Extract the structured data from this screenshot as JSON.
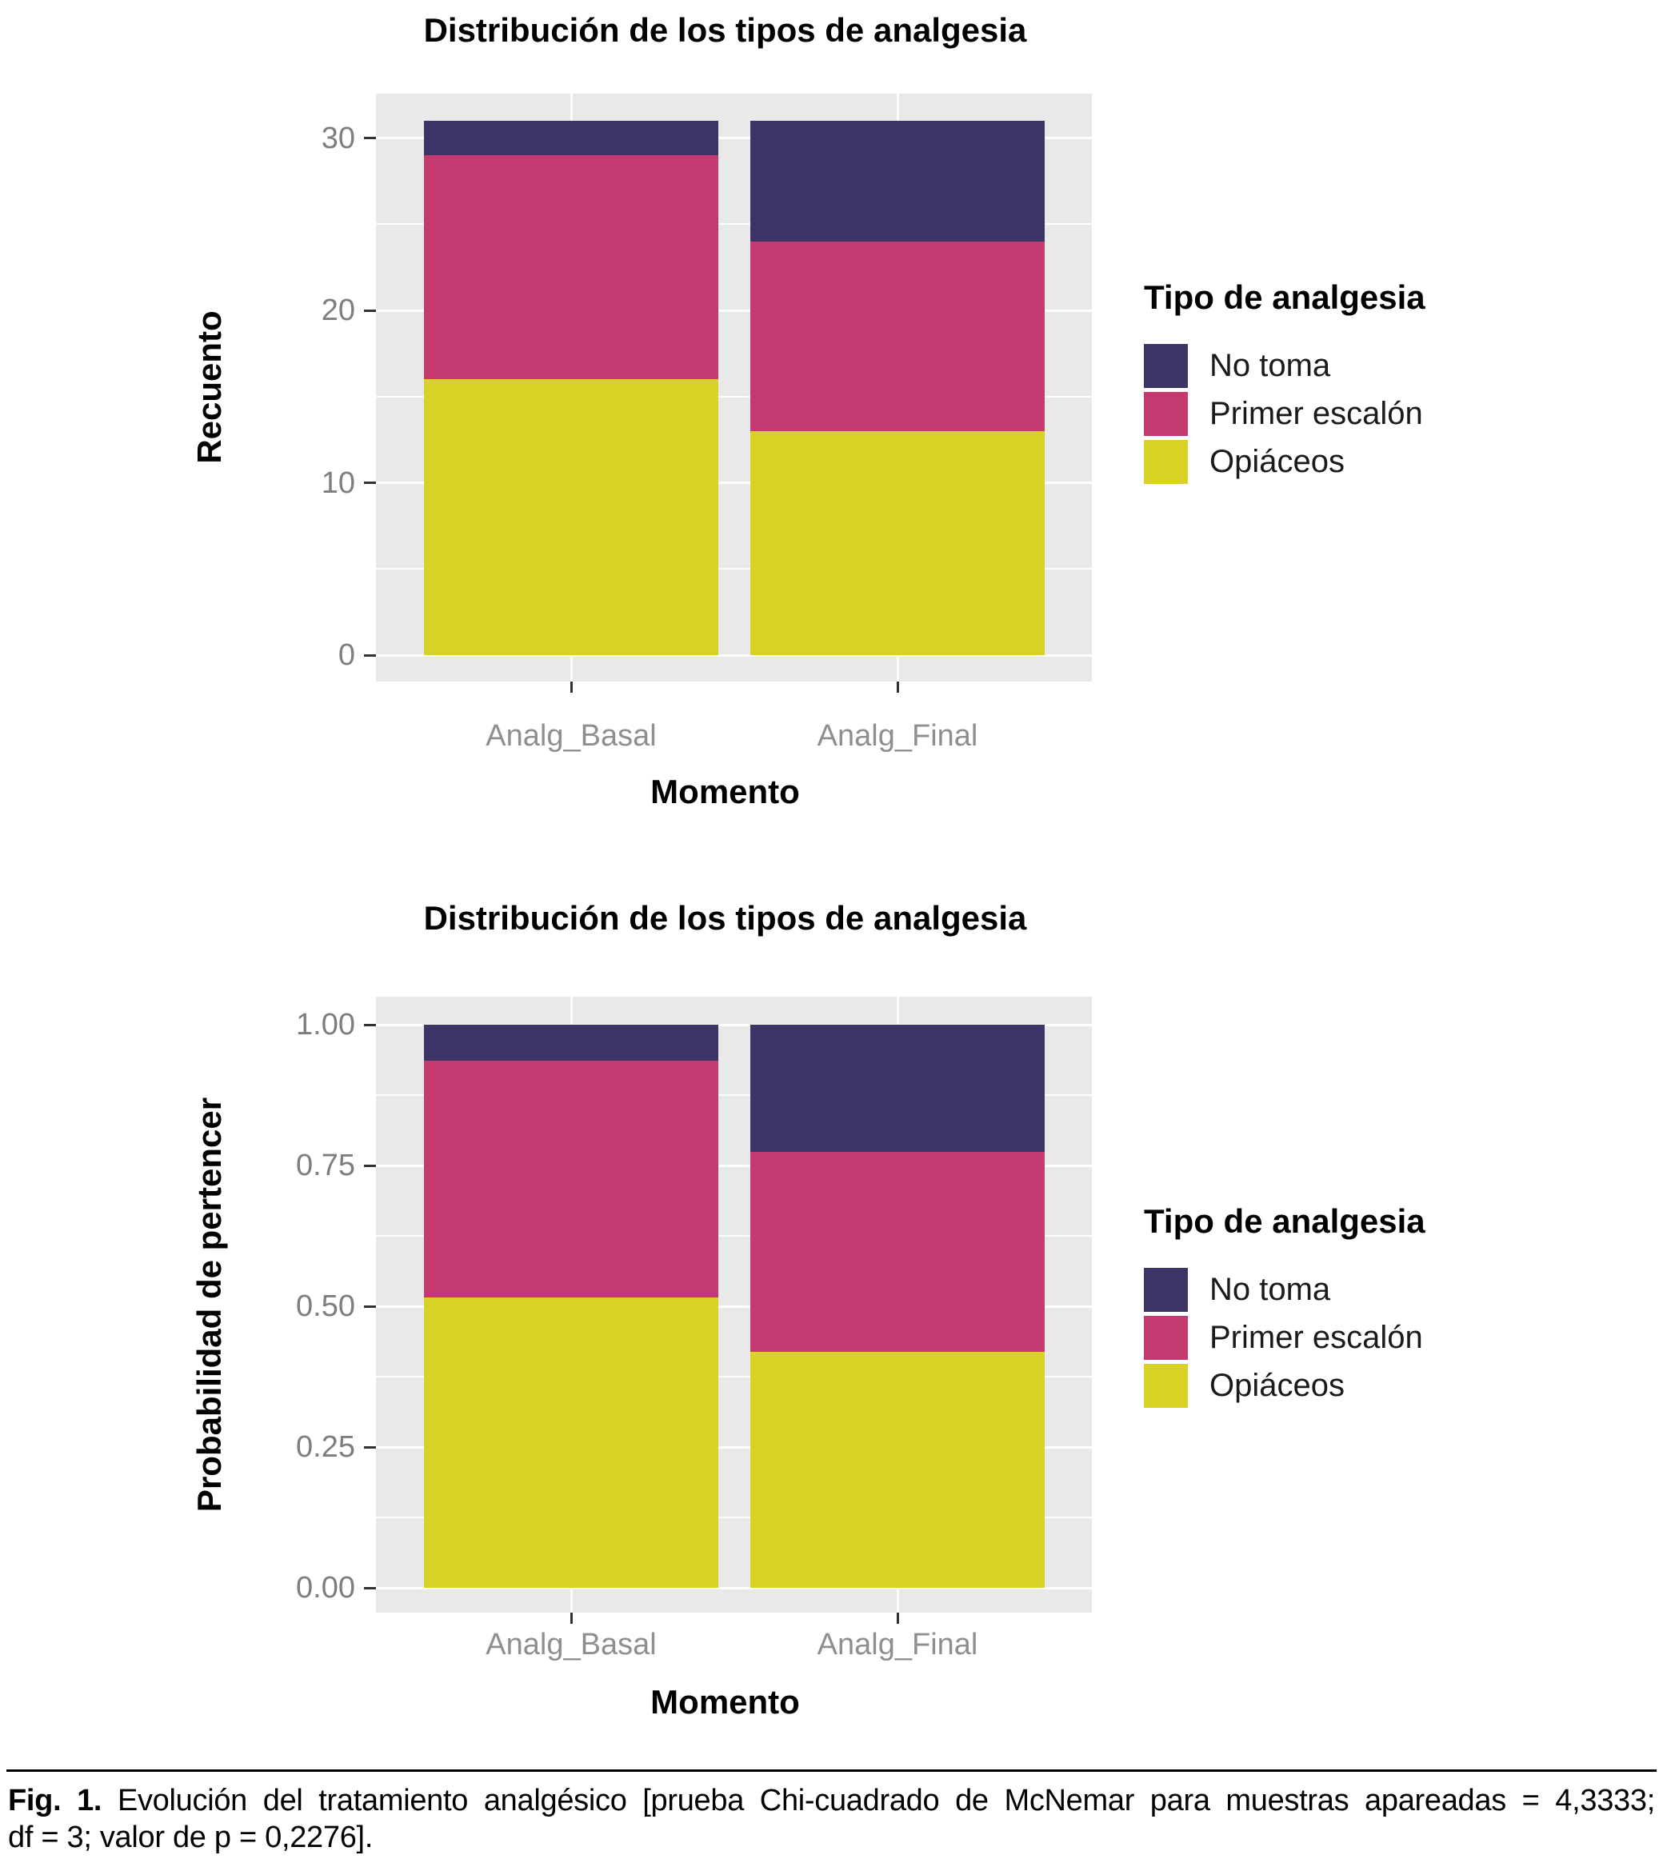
{
  "colors": {
    "no_toma": "#3E3367",
    "primer_escalon": "#C43A70",
    "opiaceos": "#D8D226",
    "panel_background": "#E9E9E9",
    "gridline": "#FFFFFF",
    "axis_text": "#7E7E7E",
    "category_text": "#8F8F8F",
    "tick_mark": "#333333"
  },
  "legend": {
    "title": "Tipo de analgesia",
    "position": "right",
    "items": [
      {
        "label": "No toma",
        "color_key": "no_toma"
      },
      {
        "label": "Primer escalón",
        "color_key": "primer_escalon"
      },
      {
        "label": "Opiáceos",
        "color_key": "opiaceos"
      }
    ]
  },
  "chart_data": [
    {
      "type": "bar",
      "stacked": true,
      "title": "Distribución de los tipos de analgesia",
      "xlabel": "Momento",
      "ylabel": "Recuento",
      "categories": [
        "Analg_Basal",
        "Analg_Final"
      ],
      "stack_order_top_to_bottom": [
        "No toma",
        "Primer escalón",
        "Opiáceos"
      ],
      "series": [
        {
          "name": "No toma",
          "color_key": "no_toma",
          "values": [
            2,
            7
          ]
        },
        {
          "name": "Primer escalón",
          "color_key": "primer_escalon",
          "values": [
            13,
            11
          ]
        },
        {
          "name": "Opiáceos",
          "color_key": "opiaceos",
          "values": [
            16,
            13
          ]
        }
      ],
      "totals": [
        31,
        31
      ],
      "ylim": [
        0,
        31
      ],
      "y_ticks": [
        0,
        10,
        20,
        30
      ],
      "y_tick_labels": [
        "0",
        "10",
        "20",
        "30"
      ],
      "y_minor_ticks": [
        5,
        15,
        25
      ],
      "grid": true,
      "legend_title": "Tipo de analgesia",
      "legend_position": "right"
    },
    {
      "type": "bar",
      "stacked": true,
      "normalized": true,
      "title": "Distribución de los tipos de analgesia",
      "xlabel": "Momento",
      "ylabel": "Probabilidad de pertencer",
      "categories": [
        "Analg_Basal",
        "Analg_Final"
      ],
      "stack_order_top_to_bottom": [
        "No toma",
        "Primer escalón",
        "Opiáceos"
      ],
      "series": [
        {
          "name": "No toma",
          "color_key": "no_toma",
          "values": [
            0.0645,
            0.2258
          ]
        },
        {
          "name": "Primer escalón",
          "color_key": "primer_escalon",
          "values": [
            0.4194,
            0.3548
          ]
        },
        {
          "name": "Opiáceos",
          "color_key": "opiaceos",
          "values": [
            0.5161,
            0.4194
          ]
        }
      ],
      "totals": [
        1.0,
        1.0
      ],
      "ylim": [
        0,
        1
      ],
      "y_ticks": [
        0,
        0.25,
        0.5,
        0.75,
        1.0
      ],
      "y_tick_labels": [
        "0.00",
        "0.25",
        "0.50",
        "0.75",
        "1.00"
      ],
      "y_minor_ticks": [
        0.125,
        0.375,
        0.625,
        0.875
      ],
      "grid": true,
      "legend_title": "Tipo de analgesia",
      "legend_position": "right"
    }
  ],
  "caption": {
    "label": "Fig. 1.",
    "line1": "Evolución del tratamiento analgésico [prueba Chi-cuadrado de McNemar para muestras apareadas = 4,3333;",
    "line2": "df = 3; valor de p = 0,2276].",
    "full_text": "Fig. 1. Evolución del tratamiento analgésico [prueba Chi-cuadrado de McNemar para muestras apareadas = 4,3333; df = 3; valor de p = 0,2276]."
  }
}
